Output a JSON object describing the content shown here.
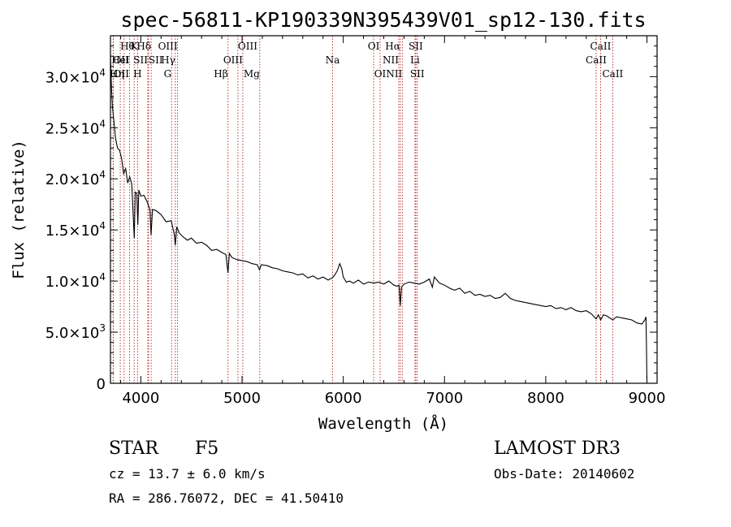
{
  "chart_data": {
    "type": "line",
    "title": "spec-56811-KP190339N395439V01_sp12-130.fits",
    "xlabel": "Wavelength (Å)",
    "ylabel": "Flux (relative)",
    "xlim": [
      3700,
      9100
    ],
    "ylim": [
      0,
      34000
    ],
    "x_ticks": [
      4000,
      5000,
      6000,
      7000,
      8000,
      9000
    ],
    "y_ticks": [
      {
        "value": 0,
        "mant": "0",
        "exp": ""
      },
      {
        "value": 5000,
        "mant": "5.0×10",
        "exp": "3"
      },
      {
        "value": 10000,
        "mant": "1.0×10",
        "exp": "4"
      },
      {
        "value": 15000,
        "mant": "1.5×10",
        "exp": "4"
      },
      {
        "value": 20000,
        "mant": "2.0×10",
        "exp": "4"
      },
      {
        "value": 25000,
        "mant": "2.5×10",
        "exp": "4"
      },
      {
        "value": 30000,
        "mant": "3.0×10",
        "exp": "4"
      }
    ],
    "line_color": "#000000",
    "marker_color": "#b22222",
    "spectrum": [
      [
        3700,
        32000
      ],
      [
        3710,
        29000
      ],
      [
        3720,
        27000
      ],
      [
        3735,
        25500
      ],
      [
        3750,
        24000
      ],
      [
        3770,
        23000
      ],
      [
        3790,
        22800
      ],
      [
        3810,
        22000
      ],
      [
        3830,
        20500
      ],
      [
        3850,
        21000
      ],
      [
        3870,
        19600
      ],
      [
        3890,
        20200
      ],
      [
        3910,
        19500
      ],
      [
        3935,
        14200
      ],
      [
        3945,
        18700
      ],
      [
        3960,
        18600
      ],
      [
        3970,
        15500
      ],
      [
        3980,
        18900
      ],
      [
        4000,
        18300
      ],
      [
        4030,
        18400
      ],
      [
        4060,
        17800
      ],
      [
        4090,
        17000
      ],
      [
        4101,
        14500
      ],
      [
        4115,
        17000
      ],
      [
        4150,
        16900
      ],
      [
        4200,
        16500
      ],
      [
        4250,
        15800
      ],
      [
        4300,
        15900
      ],
      [
        4330,
        14600
      ],
      [
        4340,
        13500
      ],
      [
        4355,
        15300
      ],
      [
        4380,
        14700
      ],
      [
        4420,
        14300
      ],
      [
        4460,
        14000
      ],
      [
        4500,
        14200
      ],
      [
        4550,
        13700
      ],
      [
        4600,
        13800
      ],
      [
        4650,
        13500
      ],
      [
        4700,
        13000
      ],
      [
        4750,
        13100
      ],
      [
        4800,
        12800
      ],
      [
        4840,
        12600
      ],
      [
        4861,
        10800
      ],
      [
        4875,
        12700
      ],
      [
        4900,
        12300
      ],
      [
        4950,
        12100
      ],
      [
        5000,
        12000
      ],
      [
        5050,
        11900
      ],
      [
        5100,
        11700
      ],
      [
        5150,
        11600
      ],
      [
        5172,
        11100
      ],
      [
        5190,
        11600
      ],
      [
        5250,
        11500
      ],
      [
        5300,
        11300
      ],
      [
        5350,
        11200
      ],
      [
        5400,
        11000
      ],
      [
        5450,
        10900
      ],
      [
        5500,
        10800
      ],
      [
        5550,
        10600
      ],
      [
        5600,
        10700
      ],
      [
        5650,
        10300
      ],
      [
        5700,
        10500
      ],
      [
        5750,
        10200
      ],
      [
        5800,
        10400
      ],
      [
        5850,
        10100
      ],
      [
        5890,
        10300
      ],
      [
        5910,
        10500
      ],
      [
        5940,
        11000
      ],
      [
        5965,
        11700
      ],
      [
        5985,
        11200
      ],
      [
        6000,
        10400
      ],
      [
        6030,
        9900
      ],
      [
        6060,
        10000
      ],
      [
        6100,
        9800
      ],
      [
        6150,
        10100
      ],
      [
        6200,
        9700
      ],
      [
        6250,
        9900
      ],
      [
        6300,
        9800
      ],
      [
        6350,
        9900
      ],
      [
        6400,
        9700
      ],
      [
        6450,
        10000
      ],
      [
        6500,
        9600
      ],
      [
        6530,
        9500
      ],
      [
        6550,
        9600
      ],
      [
        6563,
        7600
      ],
      [
        6575,
        9400
      ],
      [
        6600,
        9700
      ],
      [
        6650,
        9900
      ],
      [
        6700,
        9800
      ],
      [
        6750,
        9700
      ],
      [
        6800,
        9900
      ],
      [
        6850,
        10200
      ],
      [
        6880,
        9400
      ],
      [
        6900,
        10400
      ],
      [
        6950,
        9800
      ],
      [
        7000,
        9600
      ],
      [
        7050,
        9300
      ],
      [
        7100,
        9100
      ],
      [
        7150,
        9300
      ],
      [
        7200,
        8800
      ],
      [
        7250,
        9000
      ],
      [
        7300,
        8600
      ],
      [
        7350,
        8700
      ],
      [
        7400,
        8500
      ],
      [
        7450,
        8600
      ],
      [
        7500,
        8300
      ],
      [
        7550,
        8400
      ],
      [
        7600,
        8800
      ],
      [
        7650,
        8300
      ],
      [
        7700,
        8100
      ],
      [
        7750,
        8000
      ],
      [
        7800,
        7900
      ],
      [
        7850,
        7800
      ],
      [
        7900,
        7700
      ],
      [
        7950,
        7600
      ],
      [
        8000,
        7500
      ],
      [
        8050,
        7600
      ],
      [
        8100,
        7300
      ],
      [
        8150,
        7400
      ],
      [
        8200,
        7200
      ],
      [
        8250,
        7400
      ],
      [
        8300,
        7100
      ],
      [
        8350,
        7000
      ],
      [
        8400,
        7100
      ],
      [
        8450,
        6800
      ],
      [
        8498,
        6300
      ],
      [
        8520,
        6700
      ],
      [
        8542,
        6200
      ],
      [
        8570,
        6700
      ],
      [
        8600,
        6600
      ],
      [
        8662,
        6200
      ],
      [
        8700,
        6500
      ],
      [
        8750,
        6400
      ],
      [
        8800,
        6300
      ],
      [
        8850,
        6200
      ],
      [
        8900,
        5900
      ],
      [
        8950,
        5800
      ],
      [
        8980,
        6200
      ],
      [
        8990,
        6500
      ],
      [
        8995,
        3800
      ],
      [
        9000,
        0
      ]
    ],
    "lines": [
      {
        "label": "Hθ",
        "wl": 3797,
        "row": 1,
        "anchor": "start"
      },
      {
        "label": "OII",
        "wl": 3727,
        "row": 2,
        "anchor": "start"
      },
      {
        "label": "OII",
        "wl": 3729,
        "row": 3,
        "anchor": "start"
      },
      {
        "label": "Hη",
        "wl": 3835,
        "row": 3,
        "anchor": "end"
      },
      {
        "label": "HeI",
        "wl": 3889,
        "row": 2,
        "anchor": "end"
      },
      {
        "label": "K",
        "wl": 3934,
        "row": 1,
        "anchor": "middle"
      },
      {
        "label": "H",
        "wl": 3968,
        "row": 3,
        "anchor": "middle"
      },
      {
        "label": "SII",
        "wl": 4069,
        "row": 2,
        "anchor": "end"
      },
      {
        "label": "Hδ",
        "wl": 4102,
        "row": 1,
        "anchor": "end"
      },
      {
        "label": "SII",
        "wl": 4076,
        "row": 2,
        "anchor": "start"
      },
      {
        "label": "OIII",
        "wl": 4363,
        "row": 1,
        "anchor": "end"
      },
      {
        "label": "Hγ",
        "wl": 4340,
        "row": 2,
        "anchor": "end"
      },
      {
        "label": "G",
        "wl": 4304,
        "row": 3,
        "anchor": "end"
      },
      {
        "label": "Hβ",
        "wl": 4861,
        "row": 3,
        "anchor": "end"
      },
      {
        "label": "OIII",
        "wl": 4959,
        "row": 1,
        "anchor": "start"
      },
      {
        "label": "OIII",
        "wl": 5007,
        "row": 2,
        "anchor": "end"
      },
      {
        "label": "Mg",
        "wl": 5175,
        "row": 3,
        "anchor": "end"
      },
      {
        "label": "Na",
        "wl": 5894,
        "row": 2,
        "anchor": "middle"
      },
      {
        "label": "OI",
        "wl": 6300,
        "row": 1,
        "anchor": "middle"
      },
      {
        "label": "OI",
        "wl": 6364,
        "row": 3,
        "anchor": "middle"
      },
      {
        "label": "NII",
        "wl": 6548,
        "row": 2,
        "anchor": "end"
      },
      {
        "label": "Hα",
        "wl": 6563,
        "row": 1,
        "anchor": "end"
      },
      {
        "label": "NII",
        "wl": 6583,
        "row": 3,
        "anchor": "end"
      },
      {
        "label": "Li",
        "wl": 6708,
        "row": 2,
        "anchor": "middle"
      },
      {
        "label": "SII",
        "wl": 6716,
        "row": 1,
        "anchor": "middle"
      },
      {
        "label": "SII",
        "wl": 6731,
        "row": 3,
        "anchor": "middle"
      },
      {
        "label": "CaII",
        "wl": 8498,
        "row": 2,
        "anchor": "middle"
      },
      {
        "label": "CaII",
        "wl": 8542,
        "row": 1,
        "anchor": "middle"
      },
      {
        "label": "CaII",
        "wl": 8662,
        "row": 3,
        "anchor": "middle"
      }
    ]
  },
  "info": {
    "class": "STAR",
    "subclass": "F5",
    "redshift": "cz = 13.7 ± 6.0 km/s",
    "coords": "RA = 286.76072, DEC =  41.50410",
    "survey": "LAMOST DR3",
    "obs_date": "Obs-Date: 20140602"
  }
}
